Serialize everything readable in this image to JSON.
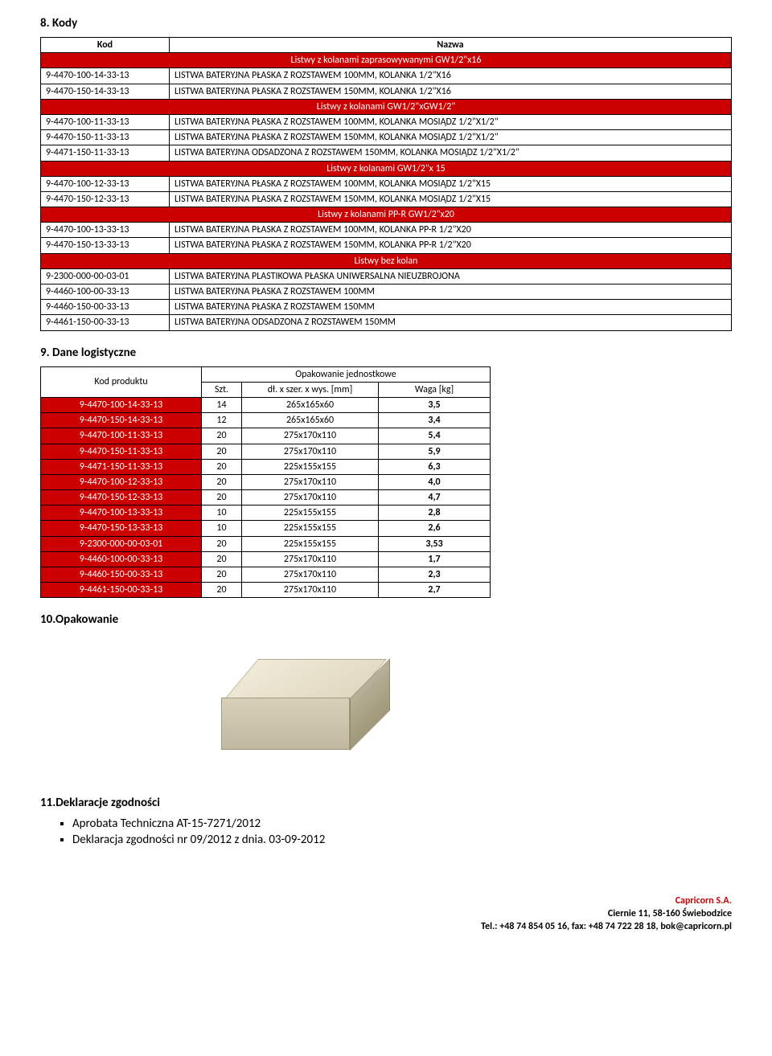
{
  "sections": {
    "kody": {
      "num": "8.",
      "title": "Kody"
    },
    "dane": {
      "num": "9.",
      "title": "Dane logistyczne"
    },
    "opak": {
      "num": "10.",
      "title": "Opakowanie"
    },
    "dekl": {
      "num": "11.",
      "title": "Deklaracje zgodności"
    }
  },
  "kody_table": {
    "headers": {
      "kod": "Kod",
      "nazwa": "Nazwa"
    },
    "rows": [
      {
        "type": "group",
        "label": "Listwy z kolanami zaprasowywanymi GW1/2\"x16"
      },
      {
        "type": "data",
        "kod": "9-4470-100-14-33-13",
        "nazwa": "LISTWA BATERYJNA PŁASKA Z ROZSTAWEM 100MM, KOLANKA 1/2\"X16"
      },
      {
        "type": "data",
        "kod": "9-4470-150-14-33-13",
        "nazwa": "LISTWA BATERYJNA PŁASKA Z ROZSTAWEM 150MM, KOLANKA 1/2\"X16"
      },
      {
        "type": "group",
        "label": "Listwy z kolanami GW1/2\"xGW1/2\""
      },
      {
        "type": "data",
        "kod": "9-4470-100-11-33-13",
        "nazwa": "LISTWA BATERYJNA  PŁASKA Z ROZSTAWEM 100MM, KOLANKA MOSIĄDZ 1/2\"X1/2\""
      },
      {
        "type": "data",
        "kod": "9-4470-150-11-33-13",
        "nazwa": "LISTWA BATERYJNA  PŁASKA Z ROZSTAWEM 150MM, KOLANKA MOSIĄDZ 1/2\"X1/2\""
      },
      {
        "type": "data",
        "kod": "9-4471-150-11-33-13",
        "nazwa": "LISTWA BATERYJNA  ODSADZONA Z ROZSTAWEM 150MM, KOLANKA MOSIĄDZ 1/2\"X1/2\""
      },
      {
        "type": "group",
        "label": "Listwy z kolanami GW1/2\"x 15"
      },
      {
        "type": "data",
        "kod": "9-4470-100-12-33-13",
        "nazwa": "LISTWA BATERYJNA PŁASKA Z ROZSTAWEM 100MM, KOLANKA MOSIĄDZ 1/2\"X15"
      },
      {
        "type": "data",
        "kod": "9-4470-150-12-33-13",
        "nazwa": "LISTWA BATERYJNA PŁASKA Z ROZSTAWEM 150MM, KOLANKA MOSIĄDZ 1/2\"X15"
      },
      {
        "type": "group",
        "label": "Listwy z kolanami PP-R GW1/2\"x20"
      },
      {
        "type": "data",
        "kod": "9-4470-100-13-33-13",
        "nazwa": "LISTWA BATERYJNA PŁASKA Z ROZSTAWEM 100MM, KOLANKA PP-R 1/2\"X20"
      },
      {
        "type": "data",
        "kod": "9-4470-150-13-33-13",
        "nazwa": "LISTWA BATERYJNA PŁASKA Z ROZSTAWEM 150MM, KOLANKA PP-R 1/2\"X20"
      },
      {
        "type": "group",
        "label": "Listwy bez kolan"
      },
      {
        "type": "data",
        "kod": "9-2300-000-00-03-01",
        "nazwa": "LISTWA BATERYJNA PLASTIKOWA PŁASKA UNIWERSALNA NIEUZBROJONA"
      },
      {
        "type": "data",
        "kod": "9-4460-100-00-33-13",
        "nazwa": "LISTWA BATERYJNA PŁASKA Z ROZSTAWEM 100MM"
      },
      {
        "type": "data",
        "kod": "9-4460-150-00-33-13",
        "nazwa": "LISTWA BATERYJNA PŁASKA Z ROZSTAWEM 150MM"
      },
      {
        "type": "data",
        "kod": "9-4461-150-00-33-13",
        "nazwa": "LISTWA BATERYJNA ODSADZONA Z ROZSTAWEM 150MM"
      }
    ]
  },
  "log_table": {
    "headers": {
      "kod": "Kod produktu",
      "opak": "Opakowanie jednostkowe",
      "szt": "Szt.",
      "dim": "dł. x szer. x wys. [mm]",
      "waga": "Waga [kg]"
    },
    "rows": [
      {
        "kod": "9-4470-100-14-33-13",
        "szt": "14",
        "dim": "265x165x60",
        "waga": "3,5"
      },
      {
        "kod": "9-4470-150-14-33-13",
        "szt": "12",
        "dim": "265x165x60",
        "waga": "3,4"
      },
      {
        "kod": "9-4470-100-11-33-13",
        "szt": "20",
        "dim": "275x170x110",
        "waga": "5,4"
      },
      {
        "kod": "9-4470-150-11-33-13",
        "szt": "20",
        "dim": "275x170x110",
        "waga": "5,9"
      },
      {
        "kod": "9-4471-150-11-33-13",
        "szt": "20",
        "dim": "225x155x155",
        "waga": "6,3"
      },
      {
        "kod": "9-4470-100-12-33-13",
        "szt": "20",
        "dim": "275x170x110",
        "waga": "4,0"
      },
      {
        "kod": "9-4470-150-12-33-13",
        "szt": "20",
        "dim": "275x170x110",
        "waga": "4,7"
      },
      {
        "kod": "9-4470-100-13-33-13",
        "szt": "10",
        "dim": "225x155x155",
        "waga": "2,8"
      },
      {
        "kod": "9-4470-150-13-33-13",
        "szt": "10",
        "dim": "225x155x155",
        "waga": "2,6"
      },
      {
        "kod": "9-2300-000-00-03-01",
        "szt": "20",
        "dim": "225x155x155",
        "waga": "3,53"
      },
      {
        "kod": "9-4460-100-00-33-13",
        "szt": "20",
        "dim": "275x170x110",
        "waga": "1,7"
      },
      {
        "kod": "9-4460-150-00-33-13",
        "szt": "20",
        "dim": "275x170x110",
        "waga": "2,3"
      },
      {
        "kod": "9-4461-150-00-33-13",
        "szt": "20",
        "dim": "275x170x110",
        "waga": "2,7"
      }
    ]
  },
  "declarations": [
    "Aprobata Techniczna AT-15-7271/2012",
    "Deklaracja zgodności nr 09/2012 z dnia. 03-09-2012"
  ],
  "footer": {
    "company": "Capricorn S.A.",
    "addr": "Ciernie 11, 58-160 Świebodzice",
    "contact": "Tel.: +48 74 854 05 16, fax: +48 74 722 28 18, bok@capricorn.pl"
  },
  "colors": {
    "red": "#cc0000",
    "text": "#000000",
    "bg": "#ffffff"
  }
}
